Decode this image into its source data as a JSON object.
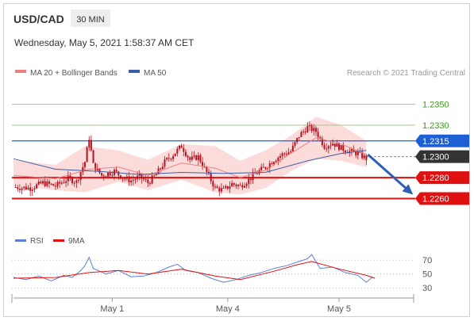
{
  "header": {
    "symbol": "USD/CAD",
    "timeframe": "30 MIN",
    "datetime": "Wednesday, May 5, 2021 1:58:37 AM CET"
  },
  "legend": {
    "ma20_label": "MA 20 + Bollinger Bands",
    "ma50_label": "MA 50",
    "credit": "Research © 2021 Trading Central",
    "rsi_label": "RSI",
    "rsi_ma_label": "9MA"
  },
  "colors": {
    "ma20": "#f08080",
    "band_fill": "#fbd5d5",
    "ma50": "#3a5ea8",
    "resistance": "#9bcf7f",
    "pivot": "#1f5fd6",
    "support": "#e01010",
    "current": "#333333",
    "candle": "#b4111d",
    "rsi": "#5b7fd6",
    "rsi_ma": "#e01010",
    "arrow": "#2f5fb5"
  },
  "chart_data": [
    {
      "type": "candlestick",
      "x_ticks": [
        "May 1",
        "May 4",
        "May 5"
      ],
      "levels": [
        {
          "value": "1.2350",
          "role": "resistance"
        },
        {
          "value": "1.2330",
          "role": "resistance"
        },
        {
          "value": "1.2315",
          "role": "pivot"
        },
        {
          "value": "1.2300",
          "role": "current"
        },
        {
          "value": "1.2280",
          "role": "support"
        },
        {
          "value": "1.2260",
          "role": "support"
        }
      ],
      "y_domain": [
        1.224,
        1.237
      ],
      "close_path": [
        [
          0,
          1.2271
        ],
        [
          8,
          1.227
        ],
        [
          14,
          1.2275
        ],
        [
          20,
          1.2272
        ],
        [
          26,
          1.2279
        ],
        [
          30,
          1.2276
        ],
        [
          34,
          1.2295
        ],
        [
          36,
          1.2318
        ],
        [
          38,
          1.2292
        ],
        [
          42,
          1.2282
        ],
        [
          48,
          1.2286
        ],
        [
          52,
          1.228
        ],
        [
          56,
          1.2277
        ],
        [
          60,
          1.2281
        ],
        [
          64,
          1.2275
        ],
        [
          68,
          1.2283
        ],
        [
          72,
          1.2295
        ],
        [
          76,
          1.2302
        ],
        [
          80,
          1.231
        ],
        [
          84,
          1.2297
        ],
        [
          88,
          1.23
        ],
        [
          92,
          1.2285
        ],
        [
          96,
          1.227
        ],
        [
          100,
          1.2268
        ],
        [
          104,
          1.2274
        ],
        [
          108,
          1.2272
        ],
        [
          112,
          1.2278
        ],
        [
          116,
          1.2285
        ],
        [
          120,
          1.229
        ],
        [
          124,
          1.2297
        ],
        [
          128,
          1.2302
        ],
        [
          132,
          1.2305
        ],
        [
          136,
          1.232
        ],
        [
          140,
          1.2328
        ],
        [
          144,
          1.2324
        ],
        [
          148,
          1.231
        ],
        [
          152,
          1.2313
        ],
        [
          156,
          1.2308
        ],
        [
          160,
          1.2305
        ],
        [
          164,
          1.2303
        ],
        [
          168,
          1.2298
        ]
      ],
      "ma20": [
        [
          0,
          1.2282
        ],
        [
          20,
          1.2279
        ],
        [
          36,
          1.2288
        ],
        [
          50,
          1.229
        ],
        [
          64,
          1.2282
        ],
        [
          80,
          1.2294
        ],
        [
          96,
          1.2289
        ],
        [
          108,
          1.228
        ],
        [
          120,
          1.2287
        ],
        [
          132,
          1.2303
        ],
        [
          144,
          1.2318
        ],
        [
          156,
          1.2312
        ],
        [
          168,
          1.2302
        ]
      ],
      "band_upper": [
        [
          0,
          1.2297
        ],
        [
          20,
          1.2292
        ],
        [
          34,
          1.231
        ],
        [
          50,
          1.2306
        ],
        [
          64,
          1.2297
        ],
        [
          80,
          1.2312
        ],
        [
          96,
          1.231
        ],
        [
          108,
          1.2296
        ],
        [
          120,
          1.2306
        ],
        [
          132,
          1.232
        ],
        [
          144,
          1.2338
        ],
        [
          156,
          1.233
        ],
        [
          168,
          1.2315
        ]
      ],
      "band_lower": [
        [
          0,
          1.2272
        ],
        [
          20,
          1.2268
        ],
        [
          34,
          1.2266
        ],
        [
          50,
          1.2276
        ],
        [
          64,
          1.2268
        ],
        [
          80,
          1.2278
        ],
        [
          96,
          1.2266
        ],
        [
          108,
          1.2264
        ],
        [
          120,
          1.227
        ],
        [
          132,
          1.2286
        ],
        [
          144,
          1.2298
        ],
        [
          156,
          1.2296
        ],
        [
          168,
          1.229
        ]
      ],
      "ma50": [
        [
          0,
          1.2298
        ],
        [
          20,
          1.2288
        ],
        [
          40,
          1.2286
        ],
        [
          60,
          1.2283
        ],
        [
          80,
          1.2285
        ],
        [
          100,
          1.2284
        ],
        [
          120,
          1.2285
        ],
        [
          140,
          1.2296
        ],
        [
          156,
          1.2303
        ],
        [
          168,
          1.2306
        ]
      ],
      "forecast": {
        "from": 1.2302,
        "to": 1.226
      }
    },
    {
      "type": "line",
      "name": "RSI",
      "y_ticks": [
        "70",
        "50",
        "30"
      ],
      "y_domain": [
        20,
        85
      ],
      "rsi": [
        [
          0,
          45
        ],
        [
          6,
          42
        ],
        [
          12,
          47
        ],
        [
          18,
          40
        ],
        [
          24,
          48
        ],
        [
          28,
          45
        ],
        [
          32,
          55
        ],
        [
          34,
          62
        ],
        [
          36,
          74
        ],
        [
          38,
          58
        ],
        [
          44,
          50
        ],
        [
          50,
          55
        ],
        [
          56,
          46
        ],
        [
          62,
          47
        ],
        [
          68,
          52
        ],
        [
          74,
          60
        ],
        [
          78,
          64
        ],
        [
          82,
          55
        ],
        [
          88,
          52
        ],
        [
          94,
          44
        ],
        [
          100,
          38
        ],
        [
          106,
          42
        ],
        [
          112,
          48
        ],
        [
          118,
          52
        ],
        [
          124,
          58
        ],
        [
          130,
          62
        ],
        [
          136,
          68
        ],
        [
          140,
          72
        ],
        [
          142,
          78
        ],
        [
          146,
          58
        ],
        [
          152,
          60
        ],
        [
          158,
          52
        ],
        [
          164,
          48
        ],
        [
          168,
          38
        ],
        [
          171,
          46
        ]
      ],
      "rsi_ma": [
        [
          0,
          44
        ],
        [
          20,
          45
        ],
        [
          36,
          52
        ],
        [
          50,
          55
        ],
        [
          64,
          50
        ],
        [
          80,
          57
        ],
        [
          96,
          47
        ],
        [
          108,
          42
        ],
        [
          124,
          54
        ],
        [
          136,
          64
        ],
        [
          142,
          68
        ],
        [
          154,
          58
        ],
        [
          168,
          48
        ],
        [
          172,
          44
        ]
      ]
    }
  ]
}
